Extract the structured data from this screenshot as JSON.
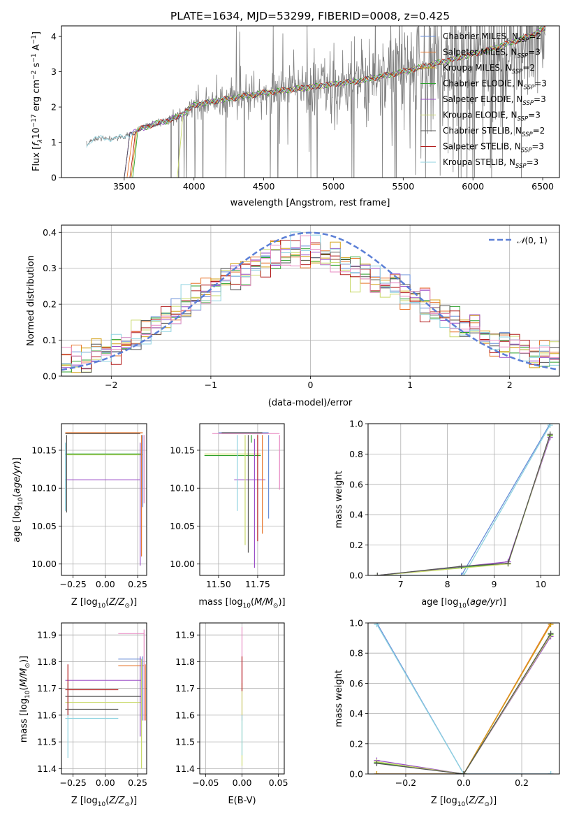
{
  "colors": [
    "#6a8fd8",
    "#e8772e",
    "#d4a017",
    "#2ca02c",
    "#9b4fc7",
    "#c9d96a",
    "#555555",
    "#b21c1c",
    "#8fd3e0",
    "#e88ac2"
  ],
  "chart_data": [
    {
      "id": "spectrum",
      "type": "line",
      "title": "PLATE=1634, MJD=53299, FIBERID=0008, z=0.425",
      "xlabel": "wavelength [Angstrom, rest frame]",
      "ylabel": "Flux [f_λ10^-17 erg cm^-2 s^-1 A^-1]",
      "xlim": [
        3050,
        6620
      ],
      "ylim": [
        0,
        4.3
      ],
      "xticks": [
        3500,
        4000,
        4500,
        5000,
        5500,
        6000,
        6500
      ],
      "yticks": [
        0,
        1,
        2,
        3,
        4
      ],
      "grid": false,
      "legend_position": "top-right",
      "legend": [
        {
          "label": "Chabrier MILES, N",
          "sub": "SSP",
          "tail": "=2",
          "color": "#6a8fd8"
        },
        {
          "label": "Salpeter MILES, N",
          "sub": "SSP",
          "tail": "=3",
          "color": "#e8772e"
        },
        {
          "label": "Kroupa MILES, N",
          "sub": "SSP",
          "tail": "=2",
          "color": "#d4a017"
        },
        {
          "label": "Chabrier ELODIE, N",
          "sub": "SSP",
          "tail": "=3",
          "color": "#2ca02c"
        },
        {
          "label": "Salpeter ELODIE, N",
          "sub": "SSP",
          "tail": "=3",
          "color": "#9b4fc7"
        },
        {
          "label": "Kroupa ELODIE, N",
          "sub": "SSP",
          "tail": "=3",
          "color": "#c9d96a"
        },
        {
          "label": "Chabrier STELIB, N",
          "sub": "SSP",
          "tail": "=2",
          "color": "#555555"
        },
        {
          "label": "Salpeter STELIB, N",
          "sub": "SSP",
          "tail": "=3",
          "color": "#b21c1c"
        },
        {
          "label": "Kroupa STELIB, N",
          "sub": "SSP",
          "tail": "=3",
          "color": "#8fd3e0"
        }
      ],
      "model_profile": [
        [
          3230,
          0.9
        ],
        [
          3260,
          1.05
        ],
        [
          3300,
          1.12
        ],
        [
          3400,
          1.1
        ],
        [
          3500,
          1.15
        ],
        [
          3600,
          1.35
        ],
        [
          3700,
          1.5
        ],
        [
          3800,
          1.6
        ],
        [
          3900,
          1.75
        ],
        [
          3950,
          1.9
        ],
        [
          4000,
          2.05
        ],
        [
          4200,
          2.2
        ],
        [
          4500,
          2.4
        ],
        [
          4800,
          2.55
        ],
        [
          5000,
          2.65
        ],
        [
          5200,
          2.75
        ],
        [
          5500,
          3.0
        ],
        [
          5800,
          3.3
        ],
        [
          6100,
          3.6
        ],
        [
          6400,
          4.0
        ],
        [
          6500,
          4.2
        ]
      ]
    },
    {
      "id": "residuals",
      "type": "step",
      "xlabel": "(data-model)/error",
      "ylabel": "Normed distribution",
      "xlim": [
        -2.5,
        2.5
      ],
      "ylim": [
        0,
        0.42
      ],
      "xticks": [
        -2,
        -1,
        0,
        1,
        2
      ],
      "yticks": [
        0.0,
        0.1,
        0.2,
        0.3,
        0.4
      ],
      "grid": true,
      "legend_position": "top-right",
      "gaussian_label": "N(0,1)",
      "gaussian_color": "#5b7fd6"
    },
    {
      "id": "age_vs_Z",
      "type": "errorbar",
      "xlabel": "Z [log10(Z/Z_sun)]",
      "ylabel": "age [log10(age/yr)]",
      "xlim": [
        -0.34,
        0.32
      ],
      "ylim": [
        9.985,
        10.185
      ],
      "xticks": [
        -0.25,
        0.0,
        0.25
      ],
      "yticks": [
        10.0,
        10.05,
        10.1,
        10.15
      ],
      "grid": true,
      "hlines": [
        [
          -0.31,
          0.29,
          10.173,
          "#e8772e"
        ],
        [
          -0.31,
          0.11,
          10.172,
          "#8fd3e0"
        ],
        [
          -0.31,
          0.27,
          10.172,
          "#555555"
        ],
        [
          -0.31,
          0.29,
          10.144,
          "#c9d96a"
        ],
        [
          -0.31,
          0.27,
          10.111,
          "#9b4fc7"
        ],
        [
          -0.31,
          0.28,
          10.145,
          "#2ca02c"
        ]
      ],
      "vlines": [
        [
          -0.3,
          10.068,
          10.17,
          "#555555"
        ],
        [
          -0.31,
          10.07,
          10.16,
          "#8fd3e0"
        ],
        [
          0.29,
          10.075,
          10.17,
          "#6a8fd8"
        ],
        [
          0.27,
          9.998,
          10.16,
          "#9b4fc7"
        ],
        [
          0.28,
          10.01,
          10.17,
          "#e8772e"
        ],
        [
          0.3,
          10.08,
          10.17,
          "#e88ac2"
        ]
      ]
    },
    {
      "id": "age_vs_mass",
      "type": "errorbar",
      "xlabel": "mass [log10(M/M_sun)]",
      "ylabel": "",
      "xlim": [
        11.38,
        11.92
      ],
      "ylim": [
        9.985,
        10.185
      ],
      "xticks": [
        11.5,
        11.75
      ],
      "yticks": [
        10.0,
        10.05,
        10.1,
        10.15
      ],
      "grid": true,
      "hlines": [
        [
          11.41,
          11.77,
          10.145,
          "#c9d96a"
        ],
        [
          11.41,
          11.77,
          10.143,
          "#2ca02c"
        ],
        [
          11.46,
          11.89,
          10.172,
          "#e88ac2"
        ],
        [
          11.6,
          11.8,
          10.111,
          "#9b4fc7"
        ],
        [
          11.5,
          11.82,
          10.173,
          "#6a8fd8"
        ],
        [
          11.52,
          11.78,
          10.173,
          "#555555"
        ]
      ],
      "vlines": [
        [
          11.62,
          10.07,
          10.17,
          "#8fd3e0"
        ],
        [
          11.67,
          10.025,
          10.17,
          "#c9d96a"
        ],
        [
          11.69,
          10.015,
          10.17,
          "#555555"
        ],
        [
          11.71,
          10.16,
          10.17,
          "#2ca02c"
        ],
        [
          11.73,
          9.995,
          10.165,
          "#9b4fc7"
        ],
        [
          11.75,
          10.03,
          10.17,
          "#b21c1c"
        ],
        [
          11.78,
          10.04,
          10.17,
          "#e8772e"
        ],
        [
          11.82,
          10.06,
          10.17,
          "#6a8fd8"
        ],
        [
          11.89,
          10.098,
          10.17,
          "#e88ac2"
        ]
      ]
    },
    {
      "id": "massweight_vs_age",
      "type": "line",
      "xlabel": "age [log10(age/yr)]",
      "ylabel": "mass weight",
      "xlim": [
        6.3,
        10.4
      ],
      "ylim": [
        0,
        1.0
      ],
      "xticks": [
        7,
        8,
        9,
        10
      ],
      "yticks": [
        0.0,
        0.2,
        0.4,
        0.6,
        0.8,
        1.0
      ],
      "grid": true,
      "lines": [
        {
          "x": [
            6.5,
            8.3,
            10.2
          ],
          "y": [
            0.0,
            0.0,
            1.0
          ],
          "color": "#6a8fd8"
        },
        {
          "x": [
            6.5,
            8.35,
            10.2
          ],
          "y": [
            0.0,
            0.0,
            0.99
          ],
          "color": "#8fd3e0"
        },
        {
          "x": [
            6.5,
            9.3,
            10.2
          ],
          "y": [
            0.0,
            0.08,
            0.92
          ],
          "color": "#2ca02c"
        },
        {
          "x": [
            6.5,
            9.3,
            10.2
          ],
          "y": [
            0.0,
            0.09,
            0.91
          ],
          "color": "#9b4fc7"
        },
        {
          "x": [
            6.5,
            9.3,
            10.2
          ],
          "y": [
            0.0,
            0.075,
            0.925
          ],
          "color": "#c9d96a"
        },
        {
          "x": [
            6.5,
            8.3,
            9.3,
            10.2
          ],
          "y": [
            0.0,
            0.06,
            0.08,
            0.93
          ],
          "color": "#555555"
        }
      ]
    },
    {
      "id": "mass_vs_Z",
      "type": "errorbar",
      "xlabel": "Z [log10(Z/Z_sun)]",
      "ylabel": "mass [log10(M/M_sun)]",
      "xlim": [
        -0.34,
        0.32
      ],
      "ylim": [
        11.38,
        11.945
      ],
      "xticks": [
        -0.25,
        0.0,
        0.25
      ],
      "yticks": [
        11.4,
        11.5,
        11.6,
        11.7,
        11.8,
        11.9
      ],
      "grid": true,
      "hlines": [
        [
          -0.31,
          0.28,
          11.73,
          "#9b4fc7"
        ],
        [
          -0.31,
          0.1,
          11.695,
          "#b21c1c"
        ],
        [
          -0.31,
          0.28,
          11.67,
          "#555555"
        ],
        [
          -0.31,
          0.28,
          11.648,
          "#c9d96a"
        ],
        [
          -0.31,
          0.1,
          11.622,
          "#555555"
        ],
        [
          -0.31,
          0.1,
          11.588,
          "#8fd3e0"
        ],
        [
          0.1,
          0.3,
          11.905,
          "#e88ac2"
        ],
        [
          0.1,
          0.28,
          11.81,
          "#6a8fd8"
        ],
        [
          0.1,
          0.3,
          11.785,
          "#e8772e"
        ]
      ],
      "vlines": [
        [
          -0.29,
          11.44,
          11.72,
          "#8fd3e0"
        ],
        [
          -0.29,
          11.6,
          11.79,
          "#b21c1c"
        ],
        [
          0.27,
          11.52,
          11.82,
          "#9b4fc7"
        ],
        [
          0.28,
          11.4,
          11.81,
          "#c9d96a"
        ],
        [
          0.29,
          11.58,
          11.82,
          "#6a8fd8"
        ],
        [
          0.3,
          11.58,
          11.92,
          "#e88ac2"
        ],
        [
          0.31,
          11.58,
          11.79,
          "#e8772e"
        ]
      ]
    },
    {
      "id": "mass_vs_EBV",
      "type": "errorbar",
      "xlabel": "E(B-V)",
      "ylabel": "",
      "xlim": [
        -0.058,
        0.058
      ],
      "ylim": [
        11.38,
        11.945
      ],
      "xticks": [
        -0.05,
        0.0,
        0.05
      ],
      "yticks": [
        11.4,
        11.5,
        11.6,
        11.7,
        11.8,
        11.9
      ],
      "grid": true,
      "hlines": [],
      "vlines": [
        [
          0.0,
          11.58,
          11.93,
          "#e88ac2"
        ],
        [
          0.0,
          11.41,
          11.72,
          "#c9d96a"
        ],
        [
          0.0,
          11.69,
          11.82,
          "#b21c1c"
        ],
        [
          0.0,
          11.45,
          11.6,
          "#8fd3e0"
        ]
      ]
    },
    {
      "id": "massweight_vs_Z",
      "type": "line",
      "xlabel": "Z [log10(Z/Z_sun)]",
      "ylabel": "mass weight",
      "xlim": [
        -0.33,
        0.33
      ],
      "ylim": [
        0,
        1.0
      ],
      "xticks": [
        -0.2,
        0.0,
        0.2
      ],
      "yticks": [
        0.0,
        0.2,
        0.4,
        0.6,
        0.8,
        1.0
      ],
      "grid": true,
      "lines": [
        {
          "x": [
            -0.3,
            0.0,
            0.3
          ],
          "y": [
            1.0,
            0.0,
            0.0
          ],
          "color": "#6a8fd8"
        },
        {
          "x": [
            -0.3,
            0.0,
            0.3
          ],
          "y": [
            0.99,
            0.0,
            0.0
          ],
          "color": "#8fd3e0"
        },
        {
          "x": [
            -0.3,
            0.0,
            0.3
          ],
          "y": [
            0.0,
            0.0,
            1.0
          ],
          "color": "#e8772e"
        },
        {
          "x": [
            -0.3,
            0.0,
            0.3
          ],
          "y": [
            0.0,
            0.0,
            0.99
          ],
          "color": "#d4a017"
        },
        {
          "x": [
            -0.3,
            0.0,
            0.3
          ],
          "y": [
            0.09,
            0.0,
            0.91
          ],
          "color": "#9b4fc7"
        },
        {
          "x": [
            -0.3,
            0.0,
            0.3
          ],
          "y": [
            0.075,
            0.0,
            0.925
          ],
          "color": "#2ca02c"
        },
        {
          "x": [
            -0.3,
            0.0,
            0.3
          ],
          "y": [
            0.08,
            0.0,
            0.92
          ],
          "color": "#c9d96a"
        },
        {
          "x": [
            -0.3,
            0.0,
            0.3
          ],
          "y": [
            0.07,
            0.0,
            0.93
          ],
          "color": "#555555"
        }
      ]
    }
  ]
}
